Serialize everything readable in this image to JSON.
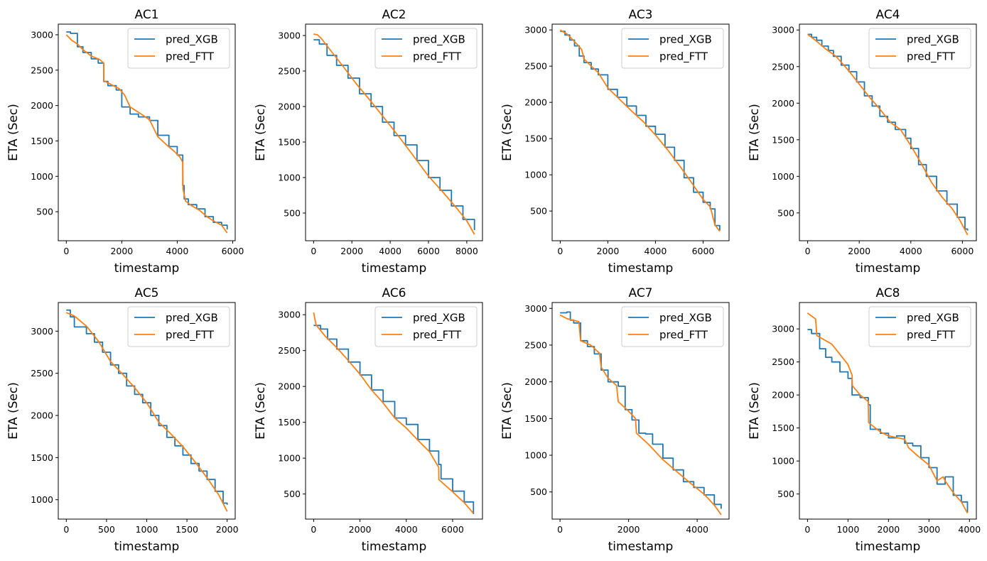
{
  "colors": {
    "xgb": "#1f77b4",
    "ftt": "#ff7f0e"
  },
  "legend_position": "top-right",
  "chart_data": [
    {
      "type": "line",
      "title": "AC1",
      "xlabel": "timestamp",
      "ylabel": "ETA (Sec)",
      "xlim": [
        -290,
        6090
      ],
      "ylim": [
        90,
        3150
      ],
      "xticks": [
        0,
        2000,
        4000,
        6000
      ],
      "xtick_labels": [
        "0",
        "2000",
        "4000",
        "6000"
      ],
      "yticks": [
        500,
        1000,
        1500,
        2000,
        2500,
        3000
      ],
      "ytick_labels": [
        "500",
        "1000",
        "1500",
        "2000",
        "2500",
        "3000"
      ],
      "series": [
        {
          "name": "pred_XGB",
          "step": true,
          "x": [
            0,
            150,
            400,
            600,
            900,
            1150,
            1350,
            1500,
            1800,
            2000,
            2300,
            2600,
            3000,
            3300,
            3700,
            4000,
            4200,
            4250,
            4400,
            4700,
            5000,
            5300,
            5600,
            5800
          ],
          "y": [
            3040,
            3020,
            2830,
            2750,
            2660,
            2600,
            2340,
            2280,
            2220,
            1980,
            1880,
            1840,
            1790,
            1580,
            1420,
            1300,
            870,
            680,
            600,
            540,
            430,
            350,
            310,
            250
          ]
        },
        {
          "name": "pred_FTT",
          "step": false,
          "x": [
            0,
            200,
            400,
            600,
            900,
            1200,
            1350,
            1355,
            1600,
            1900,
            2100,
            2300,
            2700,
            3000,
            3300,
            3600,
            3900,
            4100,
            4200,
            4210,
            4300,
            4500,
            4800,
            5100,
            5400,
            5600,
            5800
          ],
          "y": [
            3000,
            2920,
            2870,
            2790,
            2700,
            2650,
            2600,
            2350,
            2300,
            2240,
            2150,
            1980,
            1880,
            1800,
            1560,
            1450,
            1350,
            1270,
            1200,
            820,
            650,
            590,
            520,
            420,
            350,
            310,
            200
          ]
        }
      ]
    },
    {
      "type": "line",
      "title": "AC2",
      "xlabel": "timestamp",
      "ylabel": "ETA (Sec)",
      "xlim": [
        -420,
        8820
      ],
      "ylim": [
        110,
        3160
      ],
      "xticks": [
        0,
        2000,
        4000,
        6000,
        8000
      ],
      "xtick_labels": [
        "0",
        "2000",
        "4000",
        "6000",
        "8000"
      ],
      "yticks": [
        500,
        1000,
        1500,
        2000,
        2500,
        3000
      ],
      "ytick_labels": [
        "500",
        "1000",
        "1500",
        "2000",
        "2500",
        "3000"
      ],
      "series": [
        {
          "name": "pred_XGB",
          "step": true,
          "x": [
            0,
            300,
            700,
            1200,
            1800,
            2400,
            3000,
            3600,
            4200,
            4800,
            5400,
            6000,
            6600,
            7200,
            7800,
            8400
          ],
          "y": [
            2940,
            2880,
            2720,
            2580,
            2400,
            2180,
            2000,
            1780,
            1590,
            1460,
            1240,
            1000,
            820,
            600,
            410,
            260
          ]
        },
        {
          "name": "pred_FTT",
          "step": false,
          "x": [
            0,
            200,
            400,
            800,
            1500,
            2200,
            3000,
            3800,
            4500,
            5200,
            6000,
            6800,
            7500,
            8000,
            8400
          ],
          "y": [
            3020,
            3010,
            2960,
            2820,
            2580,
            2330,
            2070,
            1800,
            1560,
            1310,
            1020,
            780,
            560,
            390,
            200
          ]
        }
      ]
    },
    {
      "type": "line",
      "title": "AC3",
      "xlabel": "timestamp",
      "ylabel": "ETA (Sec)",
      "xlim": [
        -340,
        7090
      ],
      "ylim": [
        90,
        3080
      ],
      "xticks": [
        0,
        2000,
        4000,
        6000
      ],
      "xtick_labels": [
        "0",
        "2000",
        "4000",
        "6000"
      ],
      "yticks": [
        500,
        1000,
        1500,
        2000,
        2500,
        3000
      ],
      "ytick_labels": [
        "500",
        "1000",
        "1500",
        "2000",
        "2500",
        "3000"
      ],
      "series": [
        {
          "name": "pred_XGB",
          "step": true,
          "x": [
            0,
            200,
            400,
            600,
            800,
            1000,
            1300,
            1600,
            2000,
            2400,
            2800,
            3200,
            3600,
            4000,
            4400,
            4800,
            5200,
            5600,
            6000,
            6300,
            6500,
            6700
          ],
          "y": [
            2980,
            2930,
            2860,
            2780,
            2640,
            2550,
            2460,
            2380,
            2180,
            2070,
            1950,
            1820,
            1670,
            1560,
            1380,
            1200,
            960,
            760,
            620,
            530,
            300,
            230
          ]
        },
        {
          "name": "pred_FTT",
          "step": false,
          "x": [
            0,
            300,
            600,
            900,
            1000,
            1300,
            1600,
            2000,
            2500,
            3000,
            3500,
            4000,
            4500,
            5000,
            5500,
            6000,
            6300,
            6500,
            6700
          ],
          "y": [
            3000,
            2940,
            2840,
            2730,
            2600,
            2500,
            2410,
            2200,
            2040,
            1880,
            1730,
            1550,
            1350,
            1130,
            900,
            660,
            560,
            310,
            220
          ]
        }
      ]
    },
    {
      "type": "line",
      "title": "AC4",
      "xlabel": "timestamp",
      "ylabel": "ETA (Sec)",
      "xlim": [
        -320,
        6540
      ],
      "ylim": [
        120,
        3080
      ],
      "xticks": [
        0,
        2000,
        4000,
        6000
      ],
      "xtick_labels": [
        "0",
        "2000",
        "4000",
        "6000"
      ],
      "yticks": [
        500,
        1000,
        1500,
        2000,
        2500,
        3000
      ],
      "ytick_labels": [
        "500",
        "1000",
        "1500",
        "2000",
        "2500",
        "3000"
      ],
      "series": [
        {
          "name": "pred_XGB",
          "step": true,
          "x": [
            0,
            150,
            350,
            550,
            800,
            1000,
            1300,
            1600,
            1900,
            2200,
            2500,
            2800,
            3100,
            3400,
            3700,
            3800,
            4000,
            4300,
            4600,
            5000,
            5400,
            5800,
            6100,
            6200
          ],
          "y": [
            2940,
            2900,
            2860,
            2780,
            2720,
            2640,
            2520,
            2430,
            2290,
            2100,
            1960,
            1820,
            1740,
            1640,
            1640,
            1520,
            1380,
            1160,
            1000,
            800,
            620,
            440,
            280,
            260
          ]
        },
        {
          "name": "pred_FTT",
          "step": false,
          "x": [
            0,
            300,
            700,
            1100,
            1600,
            2000,
            2400,
            2800,
            3200,
            3600,
            4000,
            4400,
            4800,
            5200,
            5600,
            5900,
            6200
          ],
          "y": [
            2940,
            2860,
            2740,
            2640,
            2440,
            2260,
            2080,
            1920,
            1740,
            1640,
            1420,
            1180,
            920,
            720,
            560,
            400,
            200
          ]
        }
      ]
    },
    {
      "type": "line",
      "title": "AC5",
      "xlabel": "timestamp",
      "ylabel": "ETA (Sec)",
      "xlim": [
        -100,
        2100
      ],
      "ylim": [
        770,
        3340
      ],
      "xticks": [
        0,
        500,
        1000,
        1500,
        2000
      ],
      "xtick_labels": [
        "0",
        "500",
        "1000",
        "1500",
        "2000"
      ],
      "yticks": [
        1000,
        1500,
        2000,
        2500,
        3000
      ],
      "ytick_labels": [
        "1000",
        "1500",
        "2000",
        "2500",
        "3000"
      ],
      "series": [
        {
          "name": "pred_XGB",
          "step": true,
          "x": [
            0,
            50,
            100,
            250,
            350,
            450,
            550,
            650,
            750,
            850,
            950,
            1050,
            1150,
            1250,
            1350,
            1450,
            1550,
            1650,
            1750,
            1850,
            1950,
            2000
          ],
          "y": [
            3250,
            3170,
            3050,
            2970,
            2870,
            2750,
            2600,
            2500,
            2350,
            2250,
            2150,
            2000,
            1880,
            1740,
            1640,
            1530,
            1430,
            1340,
            1240,
            1100,
            960,
            940
          ]
        },
        {
          "name": "pred_FTT",
          "step": false,
          "x": [
            0,
            100,
            250,
            400,
            550,
            700,
            850,
            1000,
            1150,
            1300,
            1450,
            1600,
            1750,
            1900,
            2000
          ],
          "y": [
            3220,
            3180,
            3060,
            2880,
            2640,
            2490,
            2330,
            2150,
            1920,
            1780,
            1630,
            1450,
            1260,
            1050,
            860
          ]
        }
      ]
    },
    {
      "type": "line",
      "title": "AC6",
      "xlabel": "timestamp",
      "ylabel": "ETA (Sec)",
      "xlim": [
        -350,
        7290
      ],
      "ylim": [
        150,
        3170
      ],
      "xticks": [
        0,
        2000,
        4000,
        6000
      ],
      "xtick_labels": [
        "0",
        "2000",
        "4000",
        "6000"
      ],
      "yticks": [
        500,
        1000,
        1500,
        2000,
        2500,
        3000
      ],
      "ytick_labels": [
        "500",
        "1000",
        "1500",
        "2000",
        "2500",
        "3000"
      ],
      "series": [
        {
          "name": "pred_XGB",
          "step": true,
          "x": [
            0,
            300,
            600,
            1000,
            1500,
            2000,
            2500,
            3000,
            3500,
            4000,
            4500,
            5000,
            5400,
            5500,
            6000,
            6500,
            6900
          ],
          "y": [
            2850,
            2800,
            2660,
            2520,
            2340,
            2160,
            1950,
            1790,
            1560,
            1470,
            1260,
            1100,
            910,
            710,
            540,
            390,
            220
          ]
        },
        {
          "name": "pred_FTT",
          "step": false,
          "x": [
            0,
            100,
            500,
            1000,
            1500,
            2000,
            2500,
            3000,
            3500,
            4000,
            4500,
            5000,
            5400,
            5410,
            6000,
            6500,
            6900
          ],
          "y": [
            3030,
            2860,
            2700,
            2540,
            2360,
            2170,
            1950,
            1770,
            1560,
            1420,
            1250,
            1090,
            870,
            700,
            530,
            380,
            230
          ]
        }
      ]
    },
    {
      "type": "line",
      "title": "AC7",
      "xlabel": "timestamp",
      "ylabel": "ETA (Sec)",
      "xlim": [
        -230,
        4930
      ],
      "ylim": [
        130,
        3080
      ],
      "xticks": [
        0,
        2000,
        4000
      ],
      "xtick_labels": [
        "0",
        "2000",
        "4000"
      ],
      "yticks": [
        500,
        1000,
        1500,
        2000,
        2500,
        3000
      ],
      "ytick_labels": [
        "500",
        "1000",
        "1500",
        "2000",
        "2500",
        "3000"
      ],
      "series": [
        {
          "name": "pred_XGB",
          "step": true,
          "x": [
            0,
            200,
            300,
            400,
            600,
            800,
            1000,
            1200,
            1400,
            1700,
            1900,
            2100,
            2300,
            2500,
            2700,
            3000,
            3300,
            3600,
            3900,
            4200,
            4500,
            4700
          ],
          "y": [
            2940,
            2950,
            2840,
            2800,
            2560,
            2480,
            2380,
            2160,
            2000,
            1940,
            1620,
            1480,
            1300,
            1290,
            1150,
            960,
            800,
            640,
            560,
            460,
            330,
            270
          ]
        },
        {
          "name": "pred_FTT",
          "step": false,
          "x": [
            0,
            200,
            550,
            600,
            900,
            1150,
            1200,
            1400,
            1650,
            1700,
            2000,
            2200,
            2230,
            2600,
            3000,
            3400,
            3800,
            4200,
            4500,
            4700
          ],
          "y": [
            2910,
            2860,
            2820,
            2560,
            2500,
            2390,
            2200,
            2050,
            1950,
            1730,
            1600,
            1500,
            1300,
            1140,
            940,
            780,
            620,
            470,
            320,
            190
          ]
        }
      ]
    },
    {
      "type": "line",
      "title": "AC8",
      "xlabel": "timestamp",
      "ylabel": "ETA (Sec)",
      "xlim": [
        -200,
        4170
      ],
      "ylim": [
        120,
        3400
      ],
      "xticks": [
        0,
        1000,
        2000,
        3000,
        4000
      ],
      "xtick_labels": [
        "0",
        "1000",
        "2000",
        "3000",
        "4000"
      ],
      "yticks": [
        500,
        1000,
        1500,
        2000,
        2500,
        3000
      ],
      "ytick_labels": [
        "500",
        "1000",
        "1500",
        "2000",
        "2500",
        "3000"
      ],
      "series": [
        {
          "name": "pred_XGB",
          "step": true,
          "x": [
            0,
            100,
            300,
            450,
            600,
            800,
            1000,
            1100,
            1300,
            1500,
            1550,
            1800,
            2000,
            2200,
            2400,
            2600,
            2800,
            3000,
            3200,
            3400,
            3600,
            3800,
            3950
          ],
          "y": [
            2990,
            2930,
            2700,
            2570,
            2500,
            2350,
            2250,
            2000,
            1960,
            1850,
            1480,
            1420,
            1350,
            1380,
            1270,
            1230,
            1050,
            900,
            650,
            760,
            480,
            380,
            220
          ]
        },
        {
          "name": "pred_FTT",
          "step": false,
          "x": [
            0,
            200,
            230,
            600,
            1000,
            1100,
            1110,
            1300,
            1500,
            1510,
            1800,
            2000,
            2400,
            2500,
            2700,
            3000,
            3200,
            3350,
            3400,
            3600,
            3800,
            3950
          ],
          "y": [
            3240,
            3150,
            2900,
            2770,
            2460,
            2300,
            2140,
            2000,
            1900,
            1580,
            1440,
            1380,
            1330,
            1200,
            1090,
            940,
            700,
            760,
            700,
            520,
            380,
            210
          ]
        }
      ]
    }
  ]
}
